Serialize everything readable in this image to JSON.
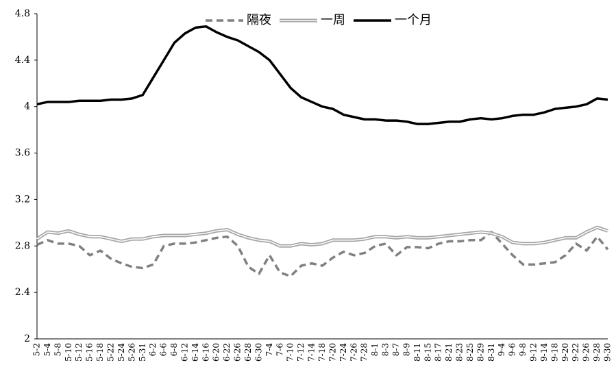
{
  "chart_data": {
    "type": "line",
    "categories": [
      "5-2",
      "5-4",
      "5-8",
      "5-10",
      "5-12",
      "5-16",
      "5-18",
      "5-22",
      "5-24",
      "5-26",
      "5-31",
      "6-2",
      "6-6",
      "6-8",
      "6-12",
      "6-14",
      "6-16",
      "6-20",
      "6-22",
      "6-26",
      "6-28",
      "6-30",
      "7-4",
      "7-6",
      "7-10",
      "7-12",
      "7-14",
      "7-18",
      "7-20",
      "7-24",
      "7-26",
      "7-28",
      "8-1",
      "8-3",
      "8-7",
      "8-9",
      "8-11",
      "8-15",
      "8-17",
      "8-21",
      "8-23",
      "8-25",
      "8-29",
      "8-31",
      "9-4",
      "9-6",
      "9-8",
      "9-12",
      "9-14",
      "9-18",
      "9-20",
      "9-22",
      "9-26",
      "9-28",
      "9-30"
    ],
    "series": [
      {
        "name": "隔夜",
        "color": "#808080",
        "line_style": "dashed",
        "values": [
          2.81,
          2.85,
          2.82,
          2.82,
          2.8,
          2.72,
          2.76,
          2.69,
          2.65,
          2.62,
          2.61,
          2.64,
          2.8,
          2.82,
          2.82,
          2.83,
          2.85,
          2.87,
          2.88,
          2.8,
          2.62,
          2.56,
          2.72,
          2.57,
          2.54,
          2.63,
          2.65,
          2.63,
          2.7,
          2.75,
          2.72,
          2.74,
          2.8,
          2.82,
          2.72,
          2.79,
          2.79,
          2.78,
          2.82,
          2.84,
          2.84,
          2.85,
          2.85,
          2.92,
          2.82,
          2.72,
          2.64,
          2.64,
          2.65,
          2.66,
          2.72,
          2.82,
          2.76,
          2.88,
          2.77
        ]
      },
      {
        "name": "一周",
        "color": "#a6a6a6",
        "line_style": "double",
        "values": [
          2.86,
          2.92,
          2.91,
          2.93,
          2.9,
          2.88,
          2.88,
          2.86,
          2.84,
          2.86,
          2.86,
          2.88,
          2.89,
          2.89,
          2.89,
          2.9,
          2.91,
          2.93,
          2.94,
          2.9,
          2.87,
          2.85,
          2.84,
          2.8,
          2.8,
          2.82,
          2.81,
          2.82,
          2.85,
          2.85,
          2.85,
          2.86,
          2.88,
          2.88,
          2.87,
          2.88,
          2.87,
          2.87,
          2.88,
          2.89,
          2.9,
          2.91,
          2.92,
          2.91,
          2.88,
          2.83,
          2.82,
          2.82,
          2.83,
          2.85,
          2.87,
          2.87,
          2.92,
          2.96,
          2.93
        ]
      },
      {
        "name": "一个月",
        "color": "#000000",
        "line_style": "solid",
        "values": [
          4.02,
          4.04,
          4.04,
          4.04,
          4.05,
          4.05,
          4.05,
          4.06,
          4.06,
          4.07,
          4.1,
          4.25,
          4.4,
          4.55,
          4.63,
          4.68,
          4.69,
          4.64,
          4.6,
          4.57,
          4.52,
          4.47,
          4.4,
          4.28,
          4.16,
          4.08,
          4.04,
          4.0,
          3.98,
          3.93,
          3.91,
          3.89,
          3.89,
          3.88,
          3.88,
          3.87,
          3.85,
          3.85,
          3.86,
          3.87,
          3.87,
          3.89,
          3.9,
          3.89,
          3.9,
          3.92,
          3.93,
          3.93,
          3.95,
          3.98,
          3.99,
          4.0,
          4.02,
          4.07,
          4.06
        ]
      }
    ],
    "ylim": [
      2,
      4.8
    ],
    "yticks": [
      2,
      2.4,
      2.8,
      3.2,
      3.6,
      4,
      4.4,
      4.8
    ],
    "grid": false,
    "legend": "top"
  }
}
